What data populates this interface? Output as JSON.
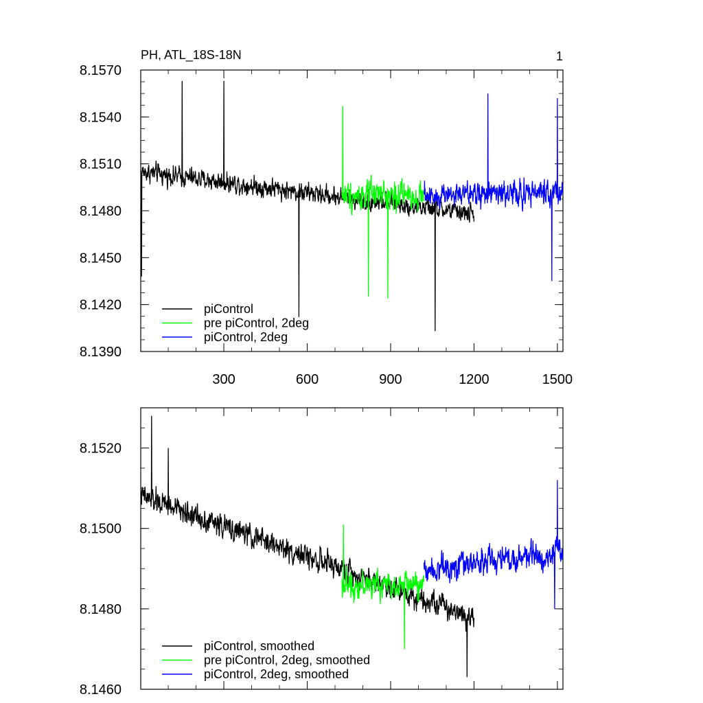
{
  "page": {
    "title": "PH, ATL_18S-18N",
    "panel_label": "1"
  },
  "colors": {
    "black": "#000000",
    "green": "#00ff00",
    "blue": "#0000ff"
  },
  "chart_data": [
    {
      "type": "line",
      "title": "PH, ATL_18S-18N",
      "xlabel": "",
      "ylabel": "",
      "xlim": [
        1,
        1520
      ],
      "ylim": [
        8.139,
        8.157
      ],
      "xticks": [
        300,
        600,
        900,
        1200,
        1500
      ],
      "yticks": [
        8.139,
        8.142,
        8.145,
        8.148,
        8.151,
        8.154,
        8.157
      ],
      "ytick_labels": [
        "8.1390",
        "8.1420",
        "8.1450",
        "8.1480",
        "8.1510",
        "8.1540",
        "8.1570"
      ],
      "legend": "bottom-left",
      "series": [
        {
          "name": "piControl",
          "color": "#000000",
          "x_range": [
            1,
            1200
          ],
          "mean_start": 8.1505,
          "mean_end": 8.1478,
          "noise": 0.0015,
          "spikes": [
            [
              150,
              8.1563
            ],
            [
              300,
              8.1563
            ],
            [
              570,
              8.1412
            ],
            [
              1060,
              8.1403
            ],
            [
              4,
              8.1438
            ]
          ]
        },
        {
          "name": "pre piControl, 2deg",
          "color": "#00ff00",
          "x_range": [
            725,
            1020
          ],
          "mean_start": 8.149,
          "mean_end": 8.149,
          "noise": 0.0022,
          "spikes": [
            [
              728,
              8.1547
            ],
            [
              820,
              8.1425
            ],
            [
              890,
              8.1424
            ]
          ]
        },
        {
          "name": "piControl, 2deg",
          "color": "#0000ff",
          "x_range": [
            1020,
            1520
          ],
          "mean_start": 8.149,
          "mean_end": 8.1492,
          "noise": 0.002,
          "spikes": [
            [
              1250,
              8.1555
            ],
            [
              1480,
              8.1435
            ],
            [
              1500,
              8.1552
            ]
          ]
        }
      ]
    },
    {
      "type": "line",
      "title": "",
      "xlabel": "",
      "ylabel": "",
      "xlim": [
        1,
        1520
      ],
      "ylim": [
        8.146,
        8.153
      ],
      "xticks": [
        300,
        600,
        900,
        1200,
        1500
      ],
      "yticks": [
        8.146,
        8.148,
        8.15,
        8.152
      ],
      "ytick_labels": [
        "8.1460",
        "8.1480",
        "8.1500",
        "8.1520"
      ],
      "legend": "bottom-left",
      "series": [
        {
          "name": "piControl, smoothed",
          "color": "#000000",
          "x_range": [
            1,
            1200
          ],
          "mean_start": 8.1508,
          "mean_end": 8.1478,
          "noise": 0.0007,
          "spikes": [
            [
              40,
              8.1528
            ],
            [
              100,
              8.152
            ],
            [
              1175,
              8.1463
            ]
          ]
        },
        {
          "name": "pre piControl, 2deg, smoothed",
          "color": "#00ff00",
          "x_range": [
            725,
            1020
          ],
          "mean_start": 8.1486,
          "mean_end": 8.1486,
          "noise": 0.0008,
          "spikes": [
            [
              730,
              8.1501
            ],
            [
              950,
              8.147
            ]
          ]
        },
        {
          "name": "piControl, 2deg, smoothed",
          "color": "#0000ff",
          "x_range": [
            1020,
            1520
          ],
          "mean_start": 8.149,
          "mean_end": 8.1494,
          "noise": 0.0008,
          "spikes": [
            [
              1500,
              8.1512
            ],
            [
              1490,
              8.148
            ]
          ]
        }
      ]
    }
  ]
}
